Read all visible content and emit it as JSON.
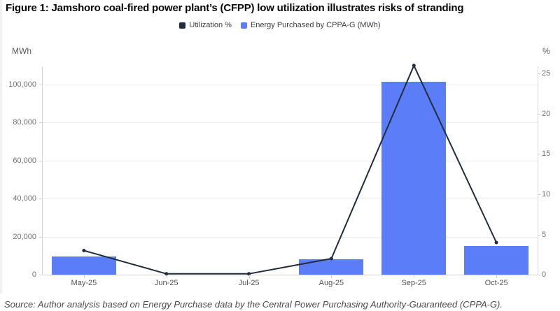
{
  "chart_data": {
    "type": "bar+line",
    "title": "Figure 1: Jamshoro coal-fired power plant’s (CFPP) low utilization illustrates risks of stranding",
    "categories": [
      "May-25",
      "Jun-25",
      "Jul-25",
      "Aug-25",
      "Sep-25",
      "Oct-25"
    ],
    "series": [
      {
        "name": "Utilization %",
        "type": "line",
        "axis": "right",
        "color": "#212d3d",
        "values": [
          3,
          0.1,
          0.1,
          2,
          26,
          4
        ]
      },
      {
        "name": "Energy Purchased by CPPA-G (MWh)",
        "type": "bar",
        "axis": "left",
        "color": "#5b7ef8",
        "values": [
          9500,
          0,
          0,
          8000,
          101500,
          15000
        ]
      }
    ],
    "left_axis": {
      "unit": "MWh",
      "ticks": [
        0,
        20000,
        40000,
        60000,
        80000,
        100000
      ],
      "max": 109500
    },
    "right_axis": {
      "unit": "%",
      "ticks": [
        0,
        5,
        10,
        15,
        20,
        25
      ],
      "max": 25.9
    },
    "grid": true,
    "legend_position": "top"
  },
  "legend": [
    {
      "label": "Utilization %",
      "color": "#212d3d"
    },
    {
      "label": "Energy Purchased by CPPA-G (MWh)",
      "color": "#5b7ef8"
    }
  ],
  "source_note": "Source: Author analysis based on Energy Purchase data by the Central Power Purchasing Authority-Guaranteed (CPPA-G)."
}
